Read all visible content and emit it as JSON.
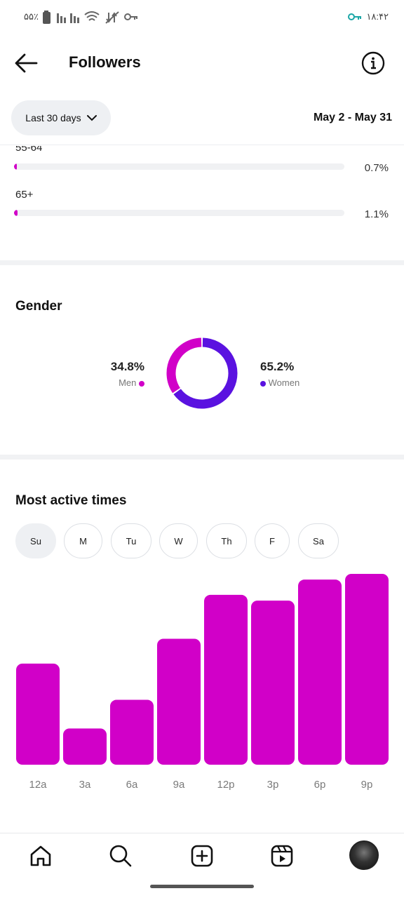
{
  "status_bar": {
    "battery_percent": "۵۵٪",
    "time": "۱۸:۴۲"
  },
  "header": {
    "title": "Followers",
    "back_icon": "arrow-left-icon",
    "info_icon": "info-icon"
  },
  "filter": {
    "range_label": "Last 30 days",
    "date_range": "May 2 - May 31"
  },
  "age_ranges": [
    {
      "label": "55-64",
      "percent_text": "0.7%",
      "value": 0.7
    },
    {
      "label": "65+",
      "percent_text": "1.1%",
      "value": 1.1
    }
  ],
  "gender": {
    "title": "Gender",
    "men": {
      "percent_text": "34.8%",
      "label": "Men",
      "value": 34.8,
      "color": "#d100c8"
    },
    "women": {
      "percent_text": "65.2%",
      "label": "Women",
      "value": 65.2,
      "color": "#5a12e0"
    }
  },
  "most_active": {
    "title": "Most active times",
    "days": [
      "Su",
      "M",
      "Tu",
      "W",
      "Th",
      "F",
      "Sa"
    ],
    "selected_day": "Su"
  },
  "chart_data": {
    "type": "bar",
    "categories": [
      "12a",
      "3a",
      "6a",
      "9a",
      "12p",
      "3p",
      "6p",
      "9p"
    ],
    "values": [
      53,
      19,
      34,
      66,
      89,
      86,
      97,
      100
    ],
    "ylim": [
      0,
      100
    ],
    "grid": false,
    "bar_color": "#d100c8"
  },
  "bottom_nav": {
    "items": [
      "home-icon",
      "search-icon",
      "create-icon",
      "reels-icon",
      "profile-avatar"
    ]
  },
  "colors": {
    "accent": "#d100c8",
    "secondary": "#5a12e0"
  }
}
